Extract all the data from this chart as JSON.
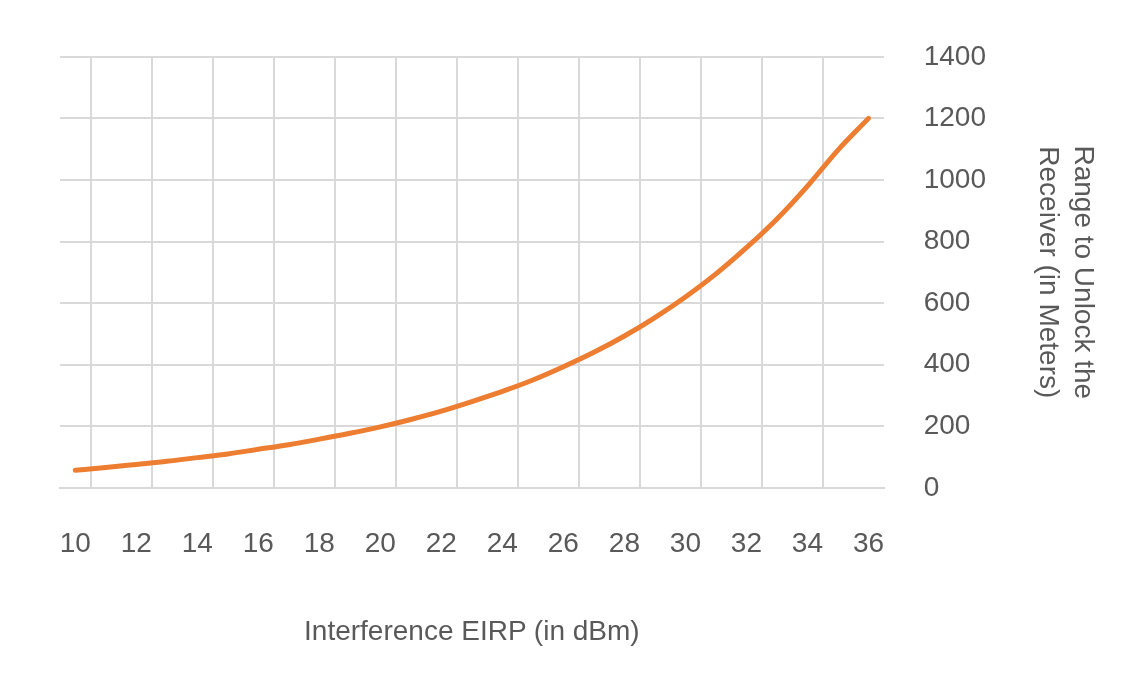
{
  "chart_data": {
    "type": "line",
    "xlabel": "Interference EIRP (in dBm)",
    "ylabel": "Range to Unlock the Receiver (in Meters)",
    "categories": [
      "10",
      null,
      "12",
      null,
      "14",
      null,
      "16",
      null,
      "18",
      null,
      "20",
      null,
      "22",
      null,
      "24",
      null,
      "26",
      null,
      "28",
      null,
      "30",
      null,
      "32",
      null,
      "34",
      null,
      "36"
    ],
    "series": [
      {
        "color": "#ed7d31",
        "values": [
          57,
          66,
          76,
          86,
          98,
          110,
          125,
          140,
          158,
          177,
          198,
          222,
          249,
          280,
          313,
          350,
          393,
          440,
          493,
          553,
          620,
          695,
          780,
          873,
          980,
          1097,
          1200
        ]
      }
    ],
    "ylim": [
      0,
      1400
    ],
    "yticks": [
      0,
      200,
      400,
      600,
      800,
      1000,
      1200,
      1400
    ],
    "grid": true,
    "legend": false,
    "marker": "none",
    "line_style": "solid"
  }
}
